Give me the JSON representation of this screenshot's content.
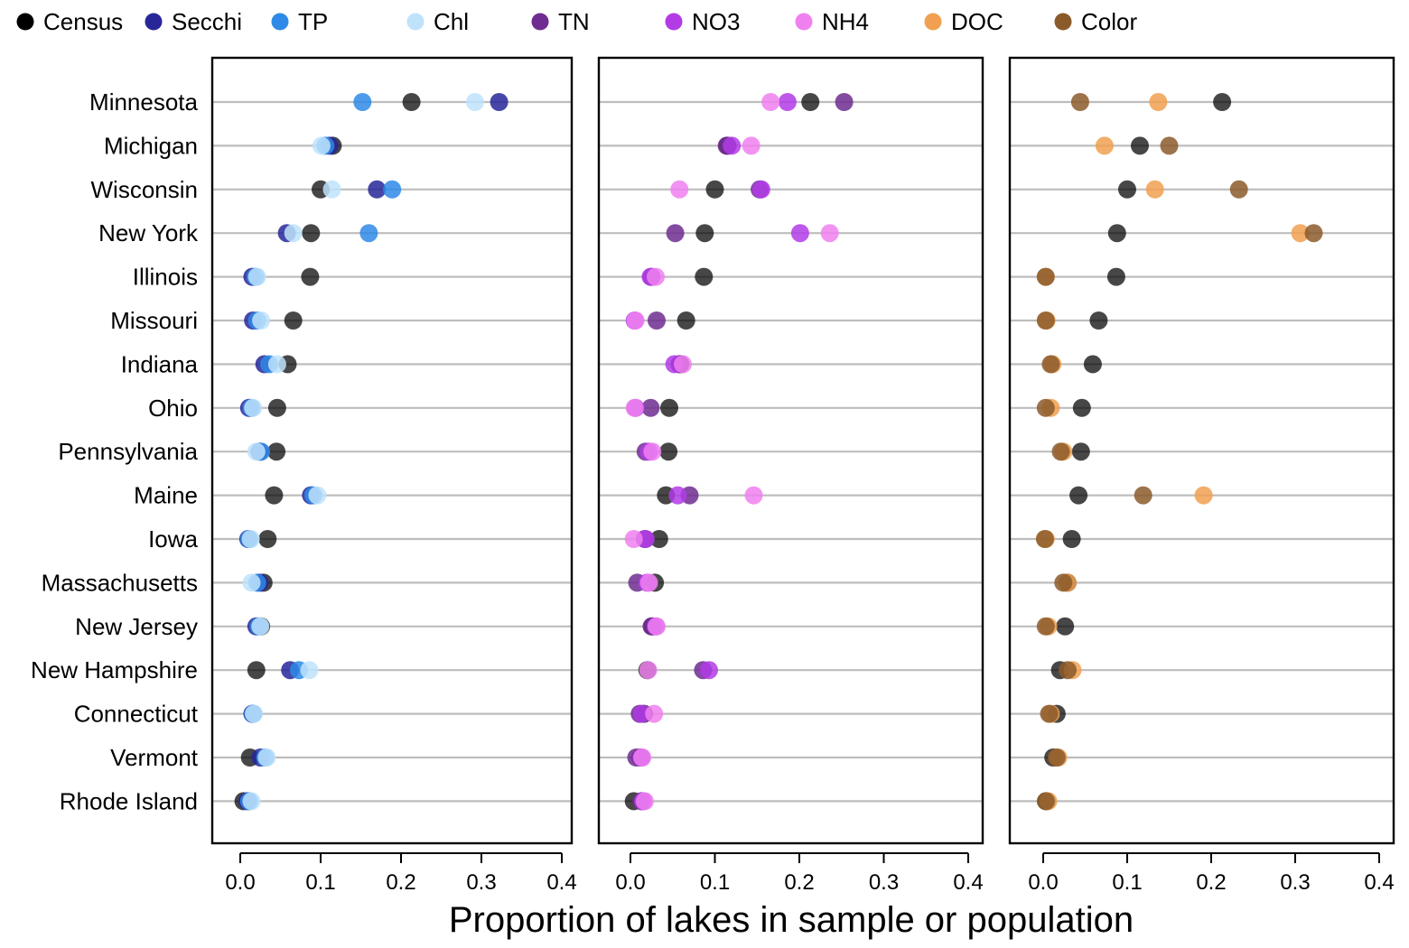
{
  "chart_data": {
    "type": "scatter",
    "xlabel": "Proportion of lakes in sample or population",
    "xlim": [
      -0.035,
      0.42
    ],
    "xticks": [
      0.0,
      0.1,
      0.2,
      0.3,
      0.4
    ],
    "xtick_labels": [
      "0.0",
      "0.1",
      "0.2",
      "0.3",
      "0.4"
    ],
    "grid": "horizontal",
    "legend_position": "top",
    "legend": [
      {
        "name": "Census",
        "color": "#000000"
      },
      {
        "name": "Secchi",
        "color": "#27279a"
      },
      {
        "name": "TP",
        "color": "#2e8ae6"
      },
      {
        "name": "Chl",
        "color": "#bfe3fb"
      },
      {
        "name": "TN",
        "color": "#6f2d91"
      },
      {
        "name": "NO3",
        "color": "#b23be6"
      },
      {
        "name": "NH4",
        "color": "#f080f0"
      },
      {
        "name": "DOC",
        "color": "#f0a050"
      },
      {
        "name": "Color",
        "color": "#8b5a2b"
      }
    ],
    "categories": [
      "Minnesota",
      "Michigan",
      "Wisconsin",
      "New York",
      "Illinois",
      "Missouri",
      "Indiana",
      "Ohio",
      "Pennsylvania",
      "Maine",
      "Iowa",
      "Massachusetts",
      "New Jersey",
      "New Hampshire",
      "Connecticut",
      "Vermont",
      "Rhode Island"
    ],
    "panels": [
      {
        "series": [
          {
            "name": "Census",
            "values": [
              0.213,
              0.115,
              0.1,
              0.088,
              0.087,
              0.066,
              0.059,
              0.046,
              0.045,
              0.042,
              0.034,
              0.029,
              0.026,
              0.02,
              0.016,
              0.012,
              0.004
            ]
          },
          {
            "name": "Secchi",
            "values": [
              0.322,
              0.111,
              0.17,
              0.058,
              0.015,
              0.016,
              0.03,
              0.011,
              0.024,
              0.088,
              0.01,
              0.024,
              0.02,
              0.062,
              0.015,
              0.025,
              0.009
            ]
          },
          {
            "name": "TP",
            "values": [
              0.152,
              0.106,
              0.189,
              0.16,
              0.019,
              0.021,
              0.036,
              0.014,
              0.026,
              0.091,
              0.011,
              0.021,
              0.023,
              0.073,
              0.016,
              0.031,
              0.011
            ]
          },
          {
            "name": "Chl",
            "values": [
              0.292,
              0.101,
              0.114,
              0.066,
              0.021,
              0.026,
              0.046,
              0.016,
              0.02,
              0.096,
              0.013,
              0.014,
              0.025,
              0.086,
              0.017,
              0.033,
              0.014
            ]
          }
        ]
      },
      {
        "series": [
          {
            "name": "Census",
            "values": [
              0.213,
              0.115,
              0.1,
              0.088,
              0.087,
              0.066,
              0.059,
              0.046,
              0.045,
              0.042,
              0.034,
              0.029,
              0.026,
              0.02,
              0.016,
              0.012,
              0.004
            ]
          },
          {
            "name": "TN",
            "values": [
              0.253,
              0.114,
              0.153,
              0.053,
              0.025,
              0.031,
              0.058,
              0.024,
              0.018,
              0.07,
              0.017,
              0.008,
              0.025,
              0.086,
              0.011,
              0.007,
              0.013
            ]
          },
          {
            "name": "NO3",
            "values": [
              0.186,
              0.12,
              0.155,
              0.201,
              0.024,
              0.005,
              0.052,
              0.006,
              0.022,
              0.056,
              0.018,
              0.02,
              0.03,
              0.093,
              0.014,
              0.013,
              0.015
            ]
          },
          {
            "name": "NH4",
            "values": [
              0.166,
              0.143,
              0.058,
              0.236,
              0.03,
              0.006,
              0.062,
              0.005,
              0.026,
              0.146,
              0.004,
              0.022,
              0.031,
              0.021,
              0.028,
              0.014,
              0.017
            ]
          }
        ]
      },
      {
        "series": [
          {
            "name": "Census",
            "values": [
              0.213,
              0.115,
              0.1,
              0.088,
              0.087,
              0.066,
              0.059,
              0.046,
              0.045,
              0.042,
              0.034,
              0.029,
              0.026,
              0.02,
              0.016,
              0.012,
              0.004
            ]
          },
          {
            "name": "DOC",
            "values": [
              0.137,
              0.073,
              0.133,
              0.306,
              0.003,
              0.004,
              0.011,
              0.009,
              0.024,
              0.191,
              0.003,
              0.029,
              0.006,
              0.035,
              0.009,
              0.018,
              0.006
            ]
          },
          {
            "name": "Color",
            "values": [
              0.044,
              0.15,
              0.233,
              0.322,
              0.003,
              0.003,
              0.009,
              0.003,
              0.021,
              0.119,
              0.002,
              0.024,
              0.003,
              0.029,
              0.007,
              0.016,
              0.003
            ]
          }
        ]
      }
    ]
  }
}
